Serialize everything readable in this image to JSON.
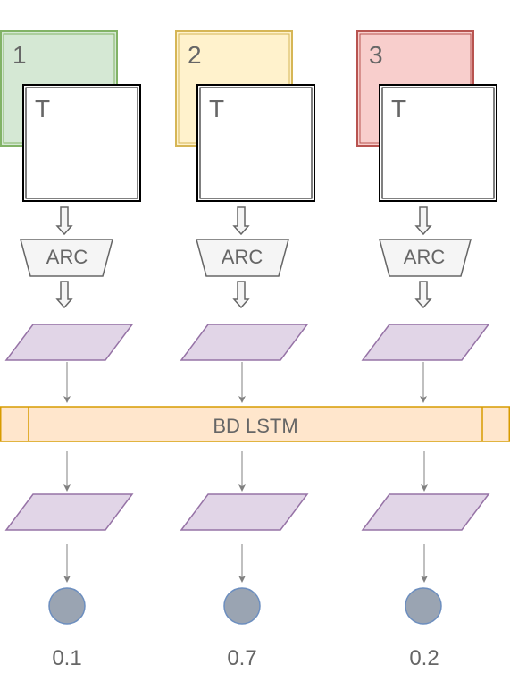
{
  "columns": [
    {
      "number": "1",
      "back_fill": "#d5e8d4",
      "back_stroke": "#82b366",
      "front_label": "T",
      "arc_label": "ARC",
      "score": "0.1"
    },
    {
      "number": "2",
      "back_fill": "#fff2cc",
      "back_stroke": "#d6b656",
      "front_label": "T",
      "arc_label": "ARC",
      "score": "0.7"
    },
    {
      "number": "3",
      "back_fill": "#f8cecc",
      "back_stroke": "#b85450",
      "front_label": "T",
      "arc_label": "ARC",
      "score": "0.2"
    }
  ],
  "lstm": {
    "label": "BD LSTM",
    "fill": "#ffe6cc",
    "stroke": "#d79b00"
  },
  "colors": {
    "parallelogram_fill": "#e1d5e7",
    "parallelogram_stroke": "#9673a6",
    "arc_fill": "#f5f5f5",
    "arc_stroke": "#666666",
    "circle_fill": "#9aa4b2",
    "circle_stroke": "#6c8ebf",
    "arrow": "#808080"
  }
}
